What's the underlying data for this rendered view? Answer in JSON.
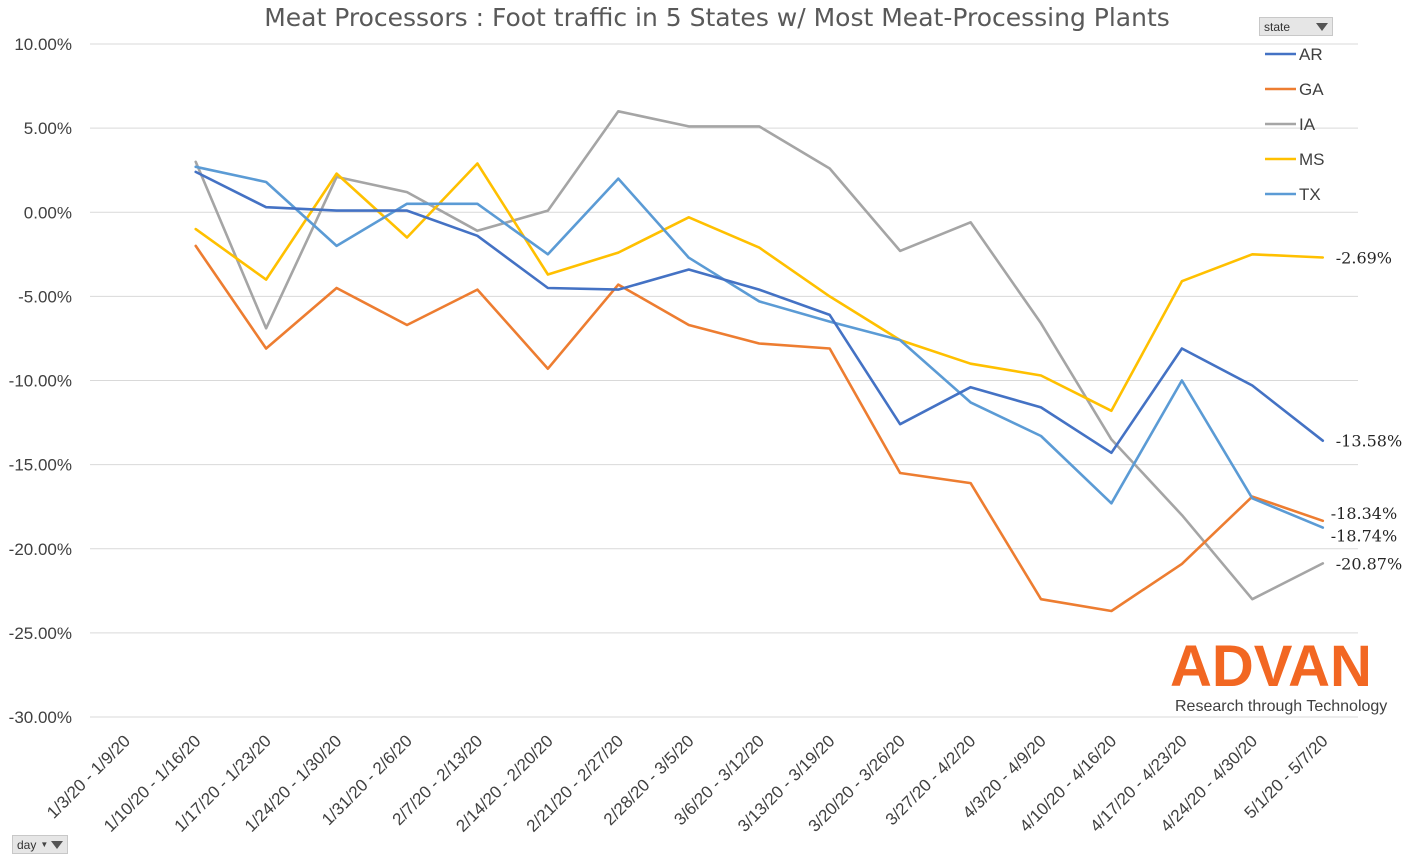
{
  "chart_data": {
    "type": "line",
    "title": "Meat Processors : Foot traffic in 5 States w/ Most Meat-Processing Plants",
    "xlabel": "",
    "ylabel": "",
    "ylim": [
      -0.3,
      0.1
    ],
    "y_ticks": [
      "10.00%",
      "5.00%",
      "0.00%",
      "-5.00%",
      "-10.00%",
      "-15.00%",
      "-20.00%",
      "-25.00%",
      "-30.00%"
    ],
    "grid": "horizontal",
    "legend_position": "top-right",
    "categories": [
      "1/3/20 - 1/9/20",
      "1/10/20 - 1/16/20",
      "1/17/20 - 1/23/20",
      "1/24/20 - 1/30/20",
      "1/31/20 - 2/6/20",
      "2/7/20 - 2/13/20",
      "2/14/20 - 2/20/20",
      "2/21/20 - 2/27/20",
      "2/28/20 - 3/5/20",
      "3/6/20 - 3/12/20",
      "3/13/20 - 3/19/20",
      "3/20/20 - 3/26/20",
      "3/27/20 - 4/2/20",
      "4/3/20 - 4/9/20",
      "4/10/20 - 4/16/20",
      "4/17/20 - 4/23/20",
      "4/24/20 - 4/30/20",
      "5/1/20 - 5/7/20"
    ],
    "series": [
      {
        "name": "AR",
        "color": "#4472c4",
        "label": "-13.58%",
        "values": [
          null,
          0.024,
          0.003,
          0.001,
          0.001,
          -0.014,
          -0.045,
          -0.046,
          -0.034,
          -0.046,
          -0.061,
          -0.126,
          -0.104,
          -0.116,
          -0.143,
          -0.081,
          -0.103,
          -0.1358
        ]
      },
      {
        "name": "GA",
        "color": "#ed7d31",
        "label": "-18.34%",
        "values": [
          null,
          -0.02,
          -0.081,
          -0.045,
          -0.067,
          -0.046,
          -0.093,
          -0.043,
          -0.067,
          -0.078,
          -0.081,
          -0.155,
          -0.161,
          -0.23,
          -0.237,
          -0.209,
          -0.169,
          -0.1834
        ]
      },
      {
        "name": "IA",
        "color": "#a5a5a5",
        "label": "-20.87%",
        "values": [
          null,
          0.03,
          -0.069,
          0.021,
          0.012,
          -0.011,
          0.001,
          0.06,
          0.051,
          0.051,
          0.026,
          -0.023,
          -0.006,
          -0.066,
          -0.135,
          -0.18,
          -0.23,
          -0.2087
        ]
      },
      {
        "name": "MS",
        "color": "#ffc000",
        "label": "-2.69%",
        "values": [
          null,
          -0.01,
          -0.04,
          0.023,
          -0.015,
          0.029,
          -0.037,
          -0.024,
          -0.003,
          -0.021,
          -0.05,
          -0.076,
          -0.09,
          -0.097,
          -0.118,
          -0.041,
          -0.025,
          -0.0269
        ]
      },
      {
        "name": "TX",
        "color": "#5b9bd5",
        "label": "-18.74%",
        "values": [
          null,
          0.027,
          0.018,
          -0.02,
          0.005,
          0.005,
          -0.025,
          0.02,
          -0.027,
          -0.053,
          -0.065,
          -0.076,
          -0.113,
          -0.133,
          -0.173,
          -0.1,
          -0.17,
          -0.1874
        ]
      }
    ]
  },
  "filters": {
    "legend_filter_label": "state",
    "axis_filter_label": "day"
  },
  "logo": {
    "brand": "ADVAN",
    "tagline": "Research through Technology"
  }
}
